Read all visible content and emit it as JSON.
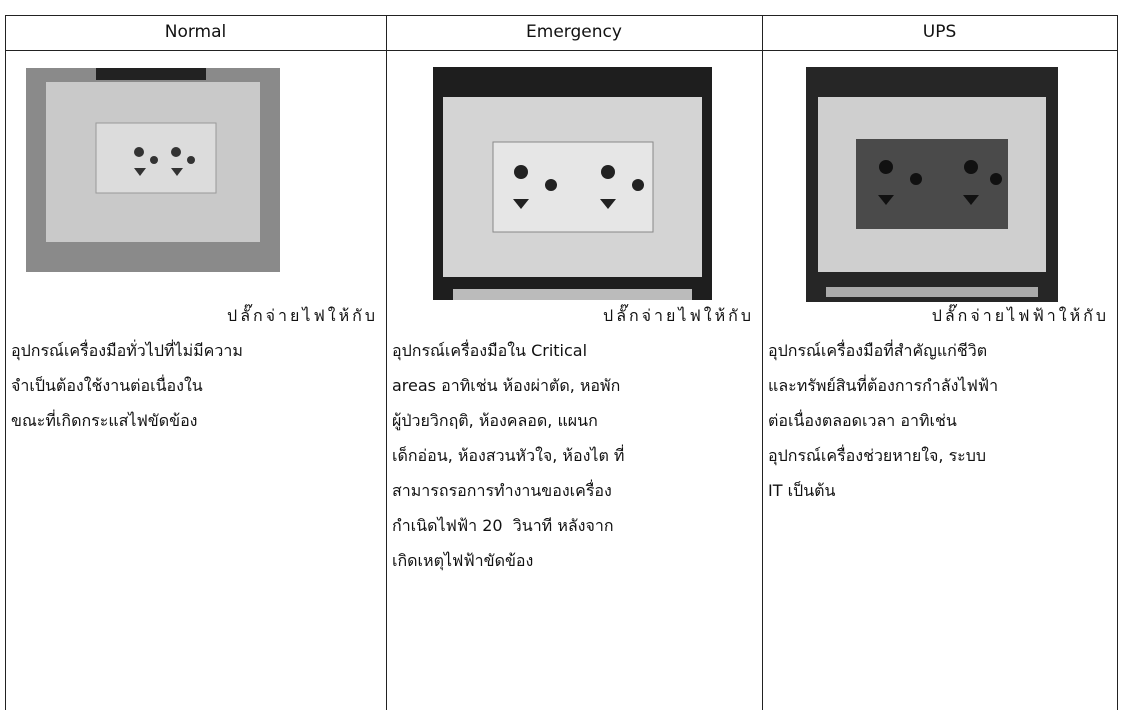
{
  "table": {
    "headers": [
      "Normal",
      "Emergency",
      "UPS"
    ],
    "cells": [
      [
        "ปลั๊กจ่ายไฟให้กับ",
        "อุปกรณ์เครื่องมือทั่วไปที่ไม่มีความ",
        "จำเป็นต้องใช้งานต่อเนื่องใน",
        "ขณะที่เกิดกระแสไฟขัดข้อง"
      ],
      [
        "ปลั๊กจ่ายไฟให้กับ",
        "อุปกรณ์เครื่องมือใน Critical",
        "areas อาทิเช่น ห้องผ่าตัด, หอพัก",
        "ผู้ป่วยวิกฤติ, ห้องคลอด, แผนก",
        "เด็กอ่อน, ห้องสวนหัวใจ, ห้องไต ที่",
        "สามารถรอการทำงานของเครื่อง",
        "กำเนิดไฟฟ้า 20  วินาที หลังจาก",
        "เกิดเหตุไฟฟ้าขัดข้อง"
      ],
      [
        "ปลั๊กจ่ายไฟฟ้าให้กับ",
        "อุปกรณ์เครื่องมือที่สำคัญแก่ชีวิต",
        "และทรัพย์สินที่ต้องการกำลังไฟฟ้า",
        "ต่อเนื่องตลอดเวลา อาทิเช่น",
        "อุปกรณ์เครื่องช่วยหายใจ, ระบบ",
        "IT เป็นต้น"
      ]
    ]
  }
}
